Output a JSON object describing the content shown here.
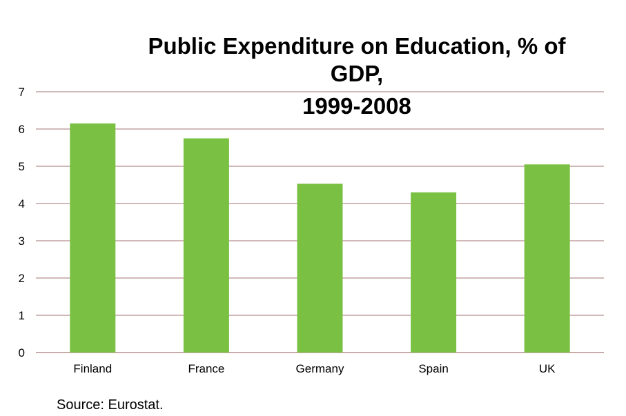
{
  "chart_data": {
    "type": "bar",
    "title": "Public Expenditure on Education, % of GDP, 1999-2008",
    "title_lines": [
      "Public Expenditure on Education, % of",
      "GDP,",
      "1999-2008"
    ],
    "xlabel": "",
    "ylabel": "",
    "categories": [
      "Finland",
      "France",
      "Germany",
      "Spain",
      "UK"
    ],
    "values": [
      6.15,
      5.75,
      4.53,
      4.3,
      5.05
    ],
    "ylim": [
      0,
      7
    ],
    "yticks": [
      "0",
      "1",
      "2",
      "3",
      "4",
      "5",
      "6",
      "7"
    ],
    "grid": true,
    "legend": "none",
    "bar_color": "#7ac143",
    "grid_color": "#b88f8f"
  },
  "source": "Source: Eurostat."
}
